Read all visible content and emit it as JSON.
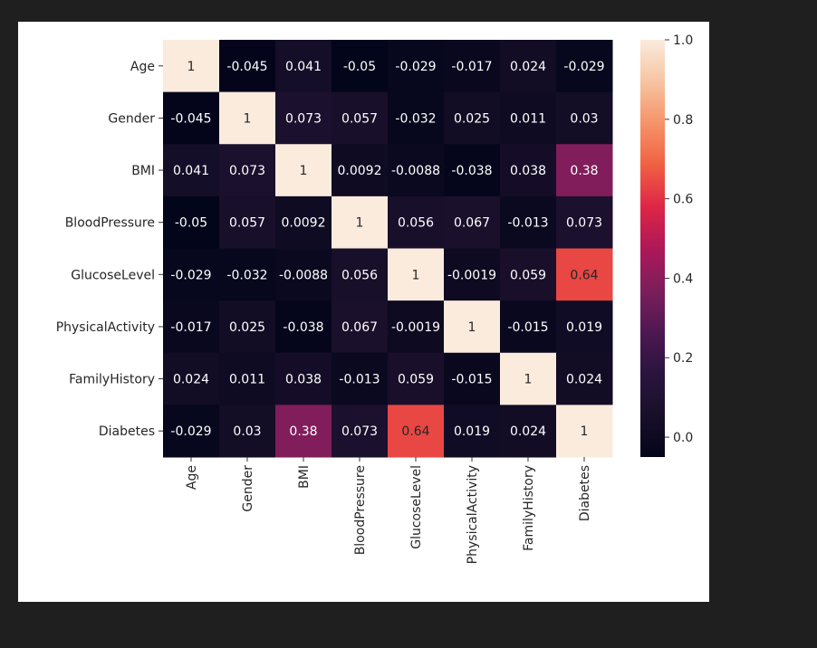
{
  "chart_data": {
    "type": "heatmap",
    "title": "",
    "xlabel": "",
    "ylabel": "",
    "rows": [
      "Age",
      "Gender",
      "BMI",
      "BloodPressure",
      "GlucoseLevel",
      "PhysicalActivity",
      "FamilyHistory",
      "Diabetes"
    ],
    "cols": [
      "Age",
      "Gender",
      "BMI",
      "BloodPressure",
      "GlucoseLevel",
      "PhysicalActivity",
      "FamilyHistory",
      "Diabetes"
    ],
    "values": [
      [
        1,
        -0.045,
        0.041,
        -0.05,
        -0.029,
        -0.017,
        0.024,
        -0.029
      ],
      [
        -0.045,
        1,
        0.073,
        0.057,
        -0.032,
        0.025,
        0.011,
        0.03
      ],
      [
        0.041,
        0.073,
        1,
        0.0092,
        -0.0088,
        -0.038,
        0.038,
        0.38
      ],
      [
        -0.05,
        0.057,
        0.0092,
        1,
        0.056,
        0.067,
        -0.013,
        0.073
      ],
      [
        -0.029,
        -0.032,
        -0.0088,
        0.056,
        1,
        -0.0019,
        0.059,
        0.64
      ],
      [
        -0.017,
        0.025,
        -0.038,
        0.067,
        -0.0019,
        1,
        -0.015,
        0.019
      ],
      [
        0.024,
        0.011,
        0.038,
        -0.013,
        0.059,
        -0.015,
        1,
        0.024
      ],
      [
        -0.029,
        0.03,
        0.38,
        0.073,
        0.64,
        0.019,
        0.024,
        1
      ]
    ],
    "annotations": [
      [
        "1",
        "-0.045",
        "0.041",
        "-0.05",
        "-0.029",
        "-0.017",
        "0.024",
        "-0.029"
      ],
      [
        "-0.045",
        "1",
        "0.073",
        "0.057",
        "-0.032",
        "0.025",
        "0.011",
        "0.03"
      ],
      [
        "0.041",
        "0.073",
        "1",
        "0.0092",
        "-0.0088",
        "-0.038",
        "0.038",
        "0.38"
      ],
      [
        "-0.05",
        "0.057",
        "0.0092",
        "1",
        "0.056",
        "0.067",
        "-0.013",
        "0.073"
      ],
      [
        "-0.029",
        "-0.032",
        "-0.0088",
        "0.056",
        "1",
        "-0.0019",
        "0.059",
        "0.64"
      ],
      [
        "-0.017",
        "0.025",
        "-0.038",
        "0.067",
        "-0.0019",
        "1",
        "-0.015",
        "0.019"
      ],
      [
        "0.024",
        "0.011",
        "0.038",
        "-0.013",
        "0.059",
        "-0.015",
        "1",
        "0.024"
      ],
      [
        "-0.029",
        "0.03",
        "0.38",
        "0.073",
        "0.64",
        "0.019",
        "0.024",
        "1"
      ]
    ],
    "colormap": "rocket",
    "colorbar": {
      "vmin": -0.05,
      "vmax": 1.0,
      "ticks": [
        0.0,
        0.2,
        0.4,
        0.6,
        0.8,
        1.0
      ],
      "tick_labels": [
        "0.0",
        "0.2",
        "0.4",
        "0.6",
        "0.8",
        "1.0"
      ]
    },
    "colors": {
      "low": "#03051a",
      "mid": "#b51a59",
      "high": "#faebdd",
      "annotation_dark": "#262626",
      "annotation_light": "#ffffff"
    },
    "grid": false,
    "legend": "colorbar-right"
  }
}
